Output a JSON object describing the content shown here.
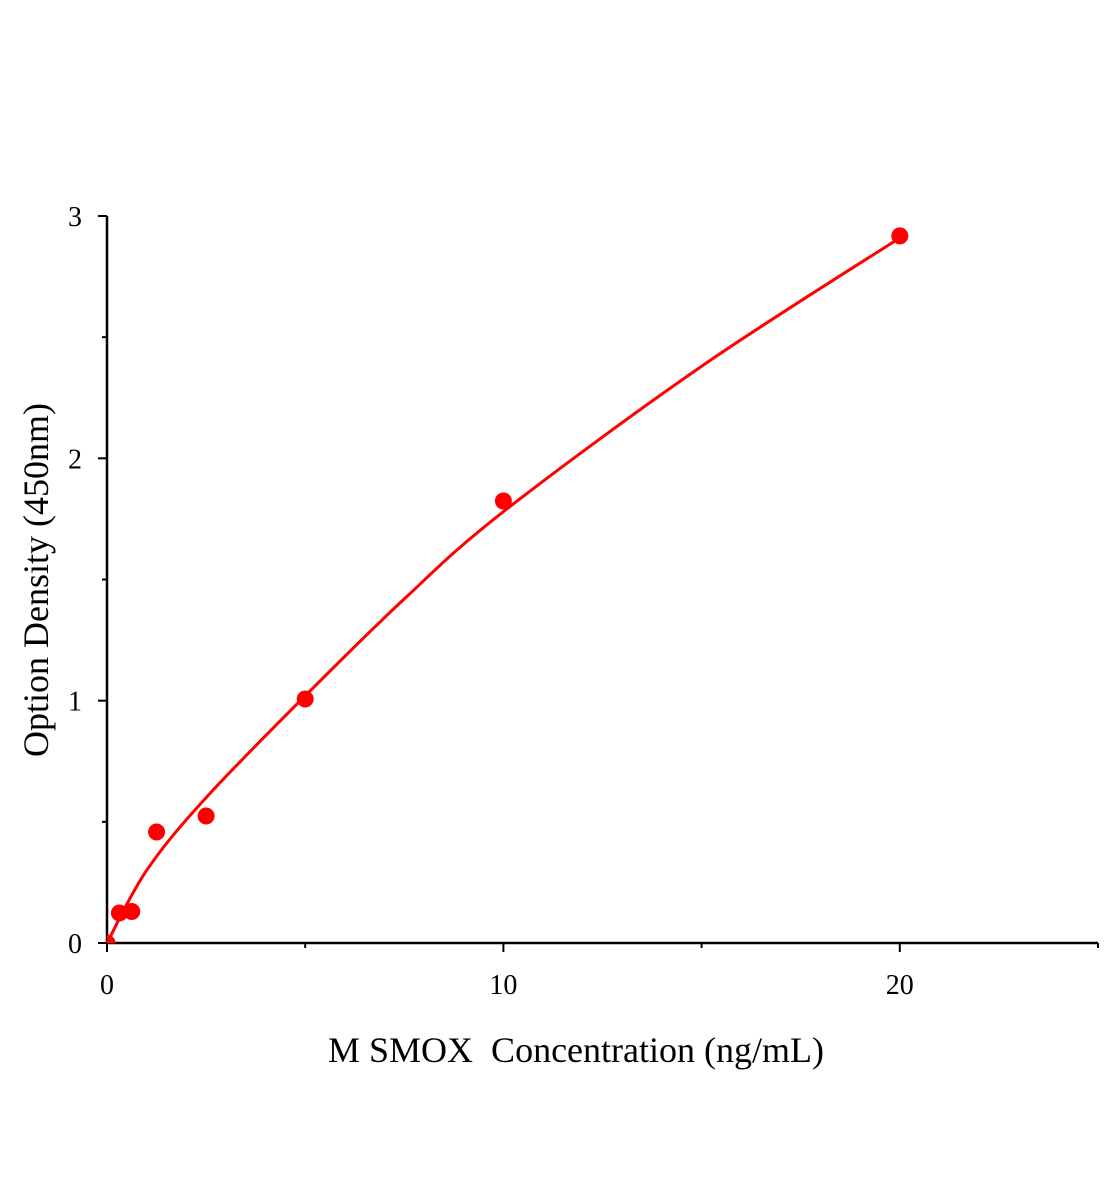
{
  "chart_data": {
    "type": "scatter",
    "title": "",
    "xlabel": "M SMOX  Concentration (ng/mL)",
    "ylabel": "Option Density (450nm)",
    "xlim": [
      0,
      25
    ],
    "ylim": [
      0,
      3
    ],
    "x_ticks": [
      0,
      10,
      20
    ],
    "x_minor_ticks": [
      5,
      15,
      25
    ],
    "y_ticks": [
      0,
      1,
      2,
      3
    ],
    "y_minor_ticks": [
      0.5,
      1.5,
      2.5
    ],
    "grid": false,
    "legend": "none",
    "series": [
      {
        "kind": "points",
        "x": [
          0,
          0.3125,
          0.625,
          1.25,
          2.5,
          5,
          10,
          20
        ],
        "y": [
          0,
          0.124,
          0.13,
          0.458,
          0.524,
          1.007,
          1.824,
          2.918
        ]
      },
      {
        "kind": "fit-line",
        "x": [
          0,
          1,
          2.5,
          5,
          7.5,
          10,
          15,
          20
        ],
        "y": [
          0,
          0.3,
          0.6,
          1.02,
          1.42,
          1.78,
          2.38,
          2.91
        ]
      }
    ],
    "colors": {
      "points": "#ff0000",
      "line": "#ff0000",
      "axis": "#000000"
    }
  }
}
